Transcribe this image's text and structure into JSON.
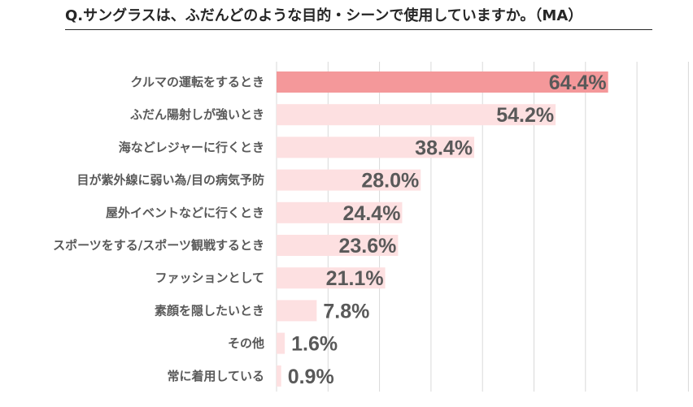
{
  "chart_data": {
    "type": "bar",
    "orientation": "horizontal",
    "title": "Q.サングラスは、ふだんどのような目的・シーンで使用していますか。（MA）",
    "categories": [
      "クルマの運転をするとき",
      "ふだん陽射しが強いとき",
      "海などレジャーに行くとき",
      "目が紫外線に弱い為/目の病気予防",
      "屋外イベントなどに行くとき",
      "スポーツをする/スポーツ観戦するとき",
      "ファッションとして",
      "素顔を隠したいとき",
      "その他",
      "常に着用している"
    ],
    "values": [
      64.4,
      54.2,
      38.4,
      28.0,
      24.4,
      23.6,
      21.1,
      7.8,
      1.6,
      0.9
    ],
    "value_labels": [
      "64.4%",
      "54.2%",
      "38.4%",
      "28.0%",
      "24.4%",
      "23.6%",
      "21.1%",
      "7.8%",
      "1.6%",
      "0.9%"
    ],
    "xlim": [
      0,
      80
    ],
    "grid": true,
    "highlight_color": "#f4989a",
    "bar_color": "#fde0e1",
    "text_color": "#595959",
    "grid_color": "#d9d9d9"
  }
}
